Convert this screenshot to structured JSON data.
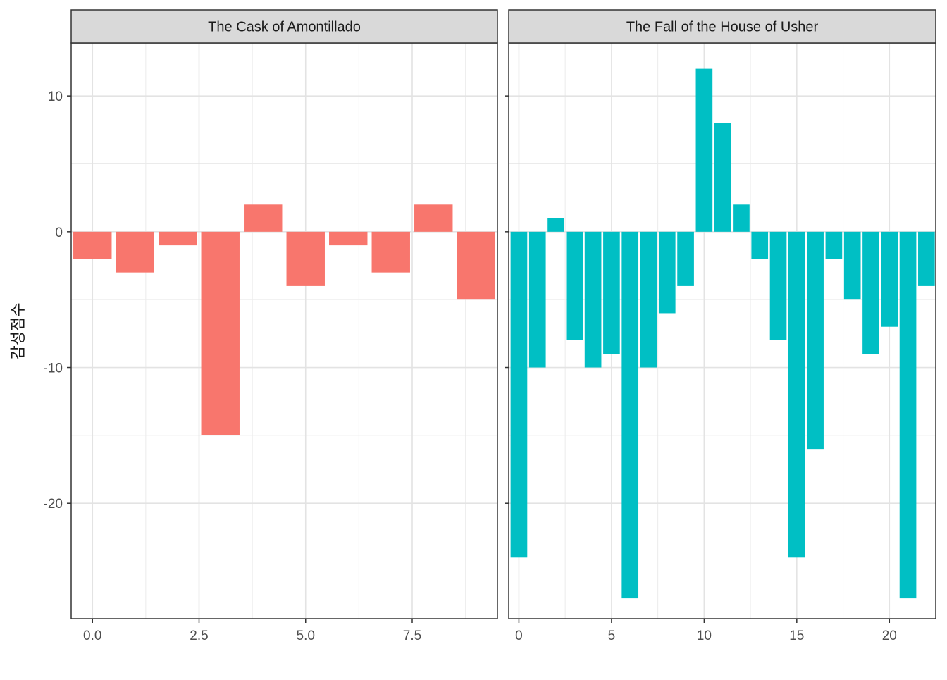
{
  "chart_data": {
    "type": "bar",
    "title": "",
    "xlabel": "",
    "ylabel": "감성점수",
    "grid": true,
    "shared_y_axis": true,
    "ylim": [
      -28.5,
      13.9
    ],
    "y_ticks": [
      -20,
      -10,
      0,
      10
    ],
    "y_tick_labels": [
      "-20",
      "-10",
      "0",
      "10"
    ],
    "panels": [
      {
        "strip_label": "The Cask of Amontillado",
        "color": "#F8766D",
        "xlim": [
          -0.5,
          9.5
        ],
        "x_ticks": [
          0,
          2.5,
          5,
          7.5
        ],
        "x_tick_labels": [
          "0.0",
          "2.5",
          "5.0",
          "7.5"
        ],
        "x": [
          0,
          1,
          2,
          3,
          4,
          5,
          6,
          7,
          8,
          9
        ],
        "values": [
          -2,
          -3,
          -1,
          -15,
          2,
          -4,
          -1,
          -3,
          2,
          -5
        ]
      },
      {
        "strip_label": "The Fall of the House of Usher",
        "color": "#00BFC4",
        "xlim": [
          -0.55,
          22.5
        ],
        "x_ticks": [
          0,
          5,
          10,
          15,
          20
        ],
        "x_tick_labels": [
          "0",
          "5",
          "10",
          "15",
          "20"
        ],
        "x": [
          0,
          1,
          2,
          3,
          4,
          5,
          6,
          7,
          8,
          9,
          10,
          11,
          12,
          13,
          14,
          15,
          16,
          17,
          18,
          19,
          20,
          21,
          22
        ],
        "values": [
          -24,
          -10,
          1,
          -8,
          -10,
          -9,
          -27,
          -10,
          -6,
          -4,
          12,
          8,
          2,
          -2,
          -8,
          -24,
          -16,
          -2,
          -5,
          -9,
          -7,
          -27,
          -4
        ]
      }
    ]
  }
}
